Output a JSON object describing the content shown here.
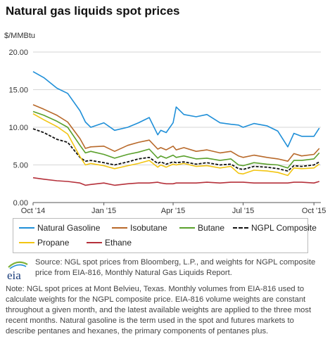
{
  "title": "Natural gas liquids spot prices",
  "unit": "$/MMBtu",
  "source": "Source: NGL spot prices from Bloomberg, L.P., and weights for NGPL composite price from EIA-816, Monthly Natural Gas Liquids Report.",
  "note": "Note: NGL spot prices at Mont Belvieu, Texas. Monthly volumes from EIA-816 used to calculate weights for the NGPL composite price. EIA-816 volume weights are constant throughout a given month, and the latest available weights are applied to the three most recent months. Natural gasoline is the term used in the spot and futures markets to describe pentanes and hexanes, the primary components of pentanes plus.",
  "logo": {
    "text": "eia"
  },
  "chart_data": {
    "type": "line",
    "title": "Natural gas liquids spot prices",
    "ylabel": "$/MMBtu",
    "ylim": [
      0,
      20
    ],
    "yticks": [
      "0.00",
      "5.00",
      "10.00",
      "15.00",
      "20.00"
    ],
    "xlim": [
      "2014-10-01",
      "2015-10-10"
    ],
    "xticks": [
      {
        "label": "Oct '14",
        "date": "2014-10-01"
      },
      {
        "label": "Jan '15",
        "date": "2015-01-01"
      },
      {
        "label": "Apr '15",
        "date": "2015-04-01"
      },
      {
        "label": "Jul '15",
        "date": "2015-07-01"
      },
      {
        "label": "Oct '15",
        "date": "2015-10-01"
      }
    ],
    "grid": true,
    "legend_position": "bottom",
    "x": [
      "2014-10-01",
      "2014-10-15",
      "2014-11-01",
      "2014-11-15",
      "2014-12-01",
      "2014-12-08",
      "2014-12-15",
      "2015-01-01",
      "2015-01-15",
      "2015-02-01",
      "2015-02-15",
      "2015-03-01",
      "2015-03-12",
      "2015-03-16",
      "2015-03-23",
      "2015-04-01",
      "2015-04-05",
      "2015-04-15",
      "2015-05-01",
      "2015-05-15",
      "2015-06-01",
      "2015-06-15",
      "2015-06-25",
      "2015-07-01",
      "2015-07-15",
      "2015-08-01",
      "2015-08-15",
      "2015-08-28",
      "2015-09-05",
      "2015-09-15",
      "2015-10-01",
      "2015-10-08"
    ],
    "series": [
      {
        "name": "Natural Gasoline",
        "color": "#1f8fd8",
        "values": [
          17.4,
          16.6,
          15.2,
          14.5,
          12.2,
          10.7,
          10.0,
          10.6,
          9.6,
          10.0,
          10.6,
          11.3,
          9.0,
          9.6,
          9.3,
          10.6,
          12.7,
          11.7,
          11.4,
          11.7,
          10.6,
          10.4,
          10.3,
          10.0,
          10.5,
          10.2,
          9.5,
          7.4,
          9.2,
          8.8,
          8.8,
          9.9
        ]
      },
      {
        "name": "Isobutane",
        "color": "#b8692a",
        "values": [
          13.0,
          12.4,
          11.6,
          10.7,
          8.5,
          7.2,
          7.4,
          7.5,
          6.8,
          7.6,
          8.0,
          8.3,
          7.1,
          7.3,
          7.0,
          7.5,
          7.0,
          7.3,
          6.8,
          7.0,
          6.6,
          6.8,
          6.2,
          6.0,
          6.3,
          6.0,
          5.8,
          5.5,
          6.5,
          6.2,
          6.4,
          7.2
        ]
      },
      {
        "name": "Butane",
        "color": "#5aa02c",
        "values": [
          12.1,
          11.6,
          10.8,
          10.0,
          7.6,
          6.6,
          6.8,
          6.4,
          5.9,
          6.4,
          6.7,
          7.1,
          5.9,
          6.2,
          5.9,
          6.3,
          6.0,
          6.2,
          5.8,
          5.9,
          5.6,
          5.8,
          5.0,
          4.9,
          5.3,
          5.1,
          5.0,
          4.6,
          5.6,
          5.6,
          5.8,
          6.6
        ]
      },
      {
        "name": "NGPL Composite",
        "color": "#111111",
        "dashed": true,
        "values": [
          9.8,
          9.3,
          8.4,
          8.0,
          6.0,
          5.5,
          5.6,
          5.3,
          5.0,
          5.4,
          5.8,
          6.0,
          5.2,
          5.4,
          5.1,
          5.4,
          5.3,
          5.4,
          5.1,
          5.3,
          5.0,
          5.1,
          4.5,
          4.4,
          4.8,
          4.7,
          4.5,
          4.2,
          4.9,
          4.8,
          5.0,
          5.4
        ]
      },
      {
        "name": "Propane",
        "color": "#f2c511",
        "values": [
          11.8,
          11.0,
          10.1,
          9.1,
          6.1,
          5.0,
          5.2,
          4.9,
          4.5,
          4.9,
          5.2,
          5.6,
          4.7,
          5.0,
          4.7,
          5.1,
          5.0,
          5.2,
          4.8,
          4.9,
          4.6,
          4.8,
          3.9,
          3.8,
          4.3,
          4.2,
          4.0,
          3.6,
          4.6,
          4.5,
          4.6,
          5.1
        ]
      },
      {
        "name": "Ethane",
        "color": "#b5303a",
        "values": [
          3.3,
          3.1,
          2.9,
          2.8,
          2.6,
          2.3,
          2.4,
          2.6,
          2.3,
          2.5,
          2.6,
          2.6,
          2.7,
          2.6,
          2.5,
          2.5,
          2.6,
          2.6,
          2.6,
          2.7,
          2.6,
          2.7,
          2.7,
          2.7,
          2.6,
          2.6,
          2.6,
          2.6,
          2.7,
          2.7,
          2.6,
          2.8
        ]
      }
    ]
  }
}
